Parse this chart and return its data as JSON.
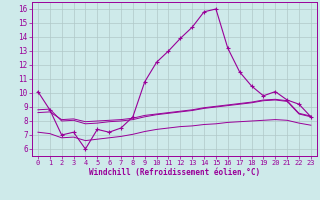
{
  "x": [
    0,
    1,
    2,
    3,
    4,
    5,
    6,
    7,
    8,
    9,
    10,
    11,
    12,
    13,
    14,
    15,
    16,
    17,
    18,
    19,
    20,
    21,
    22,
    23
  ],
  "y_main": [
    10.1,
    8.8,
    7.0,
    7.2,
    6.0,
    7.4,
    7.2,
    7.5,
    8.3,
    10.8,
    12.2,
    13.0,
    13.9,
    14.7,
    15.8,
    16.0,
    13.2,
    11.5,
    10.5,
    9.8,
    10.1,
    9.5,
    9.2,
    8.3
  ],
  "y_line2": [
    8.8,
    8.85,
    8.0,
    8.05,
    7.8,
    7.85,
    7.95,
    8.0,
    8.1,
    8.3,
    8.45,
    8.55,
    8.65,
    8.75,
    8.9,
    9.0,
    9.1,
    9.2,
    9.3,
    9.45,
    9.5,
    9.4,
    8.5,
    8.3
  ],
  "y_line3": [
    8.6,
    8.65,
    8.1,
    8.15,
    7.95,
    8.0,
    8.05,
    8.1,
    8.2,
    8.4,
    8.5,
    8.6,
    8.7,
    8.8,
    8.95,
    9.05,
    9.15,
    9.25,
    9.35,
    9.5,
    9.55,
    9.45,
    8.55,
    8.35
  ],
  "y_line4": [
    7.2,
    7.1,
    6.8,
    6.85,
    6.6,
    6.7,
    6.8,
    6.9,
    7.05,
    7.25,
    7.4,
    7.5,
    7.6,
    7.65,
    7.75,
    7.8,
    7.9,
    7.95,
    8.0,
    8.05,
    8.1,
    8.05,
    7.85,
    7.7
  ],
  "color": "#990099",
  "bg_color": "#ceeaea",
  "grid_color": "#b0c8c8",
  "xlabel": "Windchill (Refroidissement éolien,°C)",
  "xlim": [
    -0.5,
    23.5
  ],
  "ylim": [
    5.5,
    16.5
  ],
  "yticks": [
    6,
    7,
    8,
    9,
    10,
    11,
    12,
    13,
    14,
    15,
    16
  ],
  "xticks": [
    0,
    1,
    2,
    3,
    4,
    5,
    6,
    7,
    8,
    9,
    10,
    11,
    12,
    13,
    14,
    15,
    16,
    17,
    18,
    19,
    20,
    21,
    22,
    23
  ]
}
